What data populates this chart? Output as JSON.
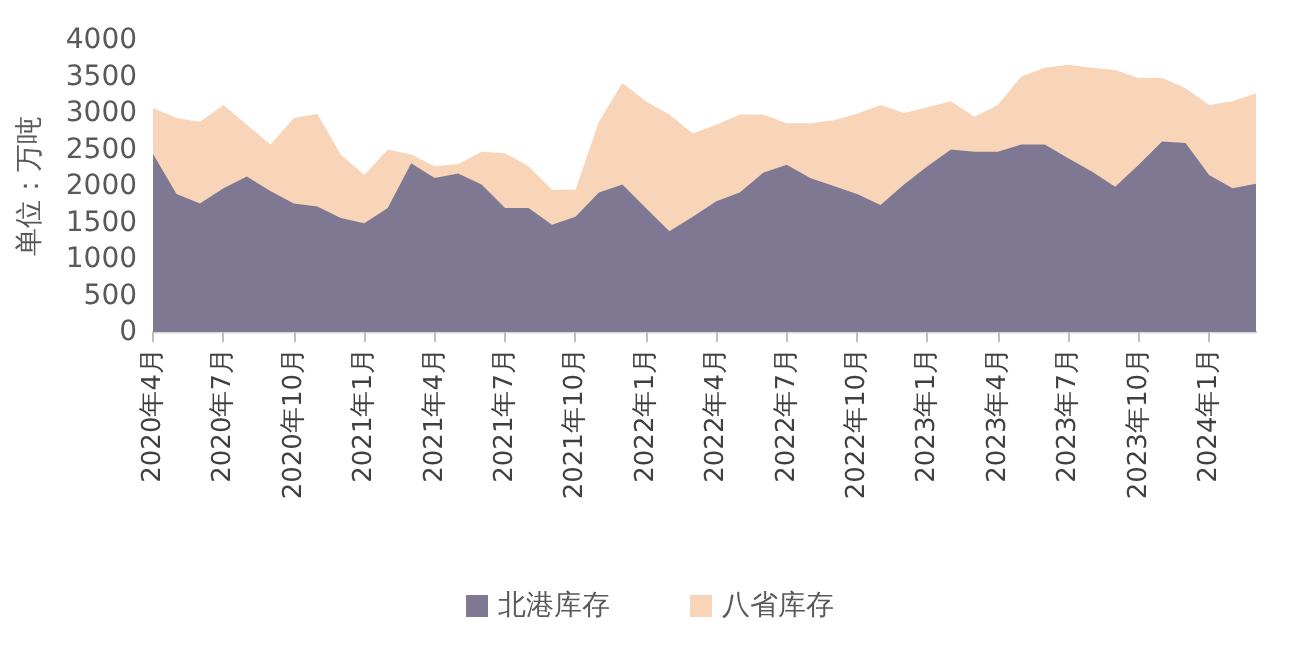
{
  "chart_data": {
    "type": "area",
    "ylabel": "单位：万吨",
    "categories": [
      "2020年4月",
      null,
      null,
      "2020年7月",
      null,
      null,
      "2020年10月",
      null,
      null,
      "2021年1月",
      null,
      null,
      "2021年4月",
      null,
      null,
      "2021年7月",
      null,
      null,
      "2021年10月",
      null,
      null,
      "2022年1月",
      null,
      null,
      "2022年4月",
      null,
      null,
      "2022年7月",
      null,
      null,
      "2022年10月",
      null,
      null,
      "2023年1月",
      null,
      null,
      "2023年4月",
      null,
      null,
      "2023年7月",
      null,
      null,
      "2023年10月",
      null,
      null,
      "2024年1月",
      null,
      null
    ],
    "series": [
      {
        "name": "北港库存",
        "color": "#7f7893",
        "values": [
          2440,
          1890,
          1760,
          1970,
          2130,
          1930,
          1760,
          1720,
          1560,
          1490,
          1700,
          2310,
          2110,
          2170,
          2020,
          1700,
          1700,
          1470,
          1580,
          1910,
          2020,
          1700,
          1380,
          1580,
          1790,
          1910,
          2180,
          2290,
          2110,
          2000,
          1890,
          1740,
          2020,
          2270,
          2500,
          2470,
          2470,
          2570,
          2570,
          2380,
          2200,
          1990,
          2290,
          2610,
          2590,
          2150,
          1970,
          2030
        ]
      },
      {
        "name": "八省库存",
        "color": "#f8d5b8",
        "values": [
          3070,
          2930,
          2880,
          3110,
          2840,
          2570,
          2930,
          2990,
          2430,
          2150,
          2500,
          2430,
          2270,
          2300,
          2470,
          2450,
          2270,
          1950,
          1950,
          2880,
          3410,
          3160,
          2980,
          2720,
          2840,
          2980,
          2980,
          2860,
          2860,
          2900,
          2990,
          3110,
          3000,
          3080,
          3160,
          2950,
          3110,
          3500,
          3620,
          3660,
          3620,
          3590,
          3480,
          3480,
          3340,
          3110,
          3160,
          3270
        ]
      }
    ],
    "ylim": [
      0,
      4000
    ],
    "yticks": [
      0,
      500,
      1000,
      1500,
      2000,
      2500,
      3000,
      3500,
      4000
    ],
    "grid": false,
    "legend": "bottom"
  }
}
